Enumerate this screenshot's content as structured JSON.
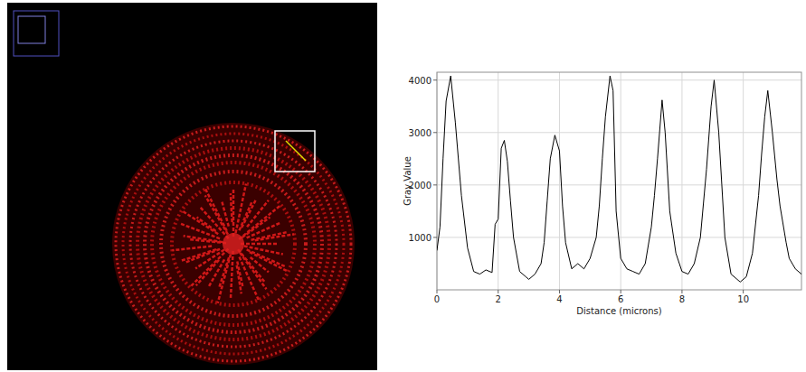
{
  "chart_data": {
    "type": "line",
    "x_label": "Distance (microns)",
    "y_label": "Gray Value",
    "x": [
      0,
      0.1,
      0.2,
      0.3,
      0.45,
      0.6,
      0.8,
      1.0,
      1.2,
      1.4,
      1.6,
      1.8,
      1.9,
      2.0,
      2.1,
      2.2,
      2.3,
      2.4,
      2.5,
      2.7,
      2.9,
      3.0,
      3.2,
      3.4,
      3.5,
      3.6,
      3.7,
      3.85,
      4.0,
      4.1,
      4.2,
      4.4,
      4.6,
      4.8,
      5.0,
      5.2,
      5.3,
      5.4,
      5.5,
      5.65,
      5.75,
      5.85,
      6.0,
      6.2,
      6.4,
      6.6,
      6.8,
      7.0,
      7.1,
      7.2,
      7.35,
      7.45,
      7.6,
      7.8,
      8.0,
      8.2,
      8.4,
      8.6,
      8.8,
      8.95,
      9.05,
      9.2,
      9.3,
      9.4,
      9.6,
      9.8,
      9.9,
      10.1,
      10.3,
      10.5,
      10.6,
      10.7,
      10.8,
      10.95,
      11.1,
      11.2,
      11.4,
      11.5,
      11.7,
      11.9
    ],
    "values": [
      750,
      1200,
      2500,
      3600,
      4080,
      3200,
      1800,
      800,
      350,
      300,
      380,
      330,
      1250,
      1350,
      2700,
      2850,
      2450,
      1700,
      1000,
      350,
      250,
      200,
      300,
      500,
      900,
      1700,
      2500,
      2950,
      2650,
      1600,
      900,
      400,
      500,
      400,
      600,
      1000,
      1600,
      2500,
      3300,
      4080,
      3800,
      1500,
      600,
      400,
      350,
      300,
      500,
      1200,
      1800,
      2500,
      3620,
      3000,
      1500,
      700,
      350,
      300,
      500,
      1000,
      2300,
      3500,
      4000,
      3000,
      2000,
      1000,
      300,
      200,
      150,
      250,
      700,
      1800,
      2600,
      3300,
      3800,
      3000,
      2100,
      1600,
      900,
      600,
      400,
      300
    ],
    "color": "#000000",
    "xlim": [
      0,
      11.9
    ],
    "ylim": [
      0,
      4150
    ],
    "xticks": [
      0,
      2,
      4,
      6,
      8,
      10
    ],
    "yticks": [
      1000,
      2000,
      3000,
      4000
    ],
    "grid": true
  }
}
